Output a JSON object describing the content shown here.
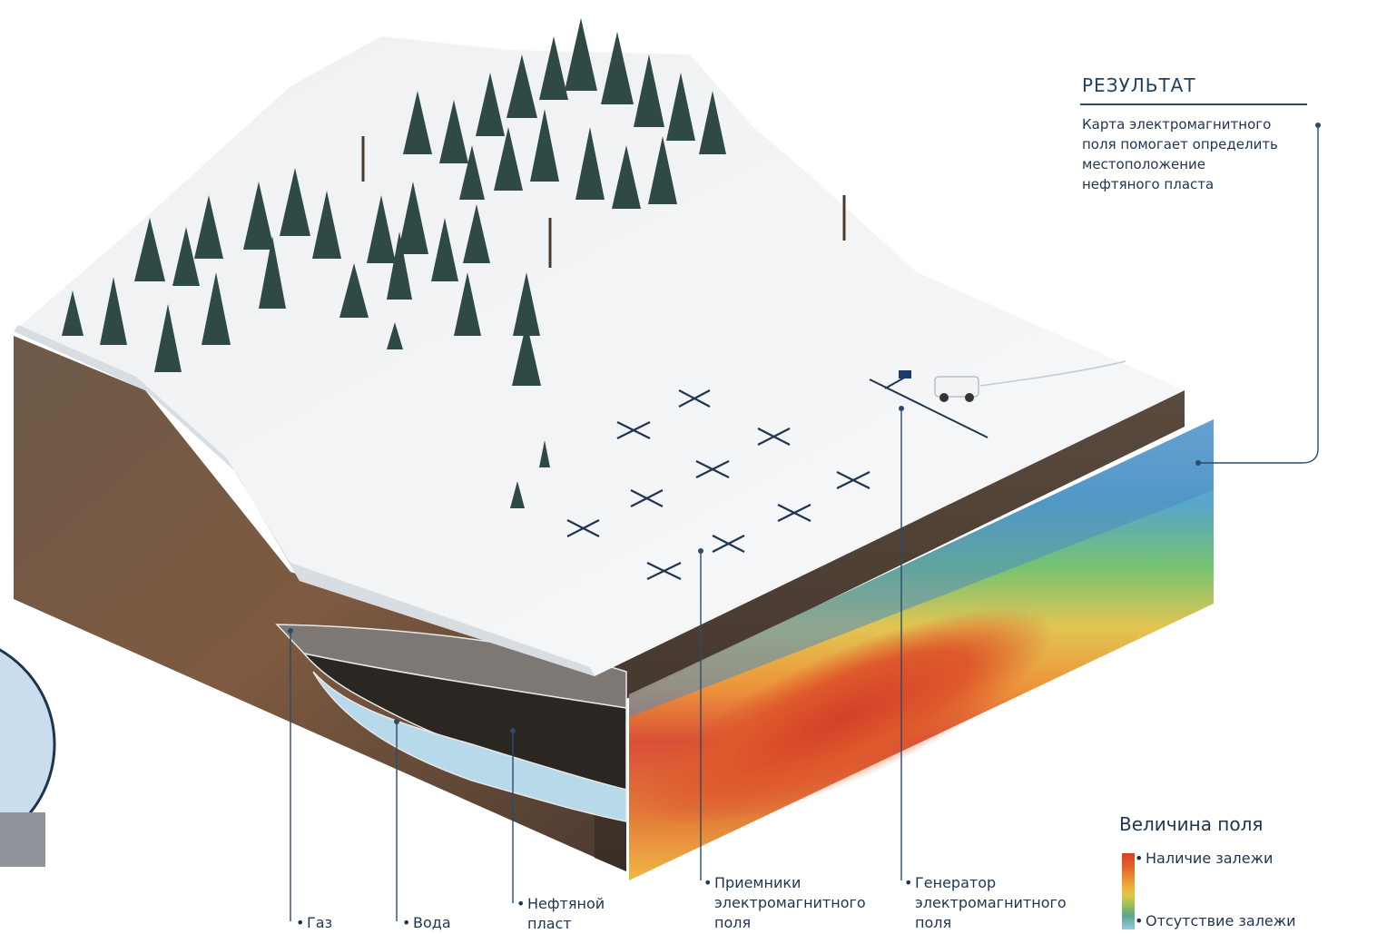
{
  "result": {
    "title": "РЕЗУЛЬТАТ",
    "description": "Карта электромагнитного\nполя помогает определить\nместоположение\nнефтяного пласта"
  },
  "legend": {
    "title": "Величина поля",
    "high": "Наличие залежи",
    "low": "Отсутствие залежи"
  },
  "labels": {
    "gas": "Газ",
    "water": "Вода",
    "oil": "Нефтяной\nпласт",
    "receivers": "Приемники\nэлектромагнитного\nполя",
    "generator": "Генератор\nэлектромагнитного\nполя"
  },
  "colors": {
    "accent": "#1e3550",
    "field_high": "#d6402a",
    "field_low": "#9ac6e3",
    "oil_layer": "#2a2622",
    "water_layer": "#b7d9ea"
  }
}
